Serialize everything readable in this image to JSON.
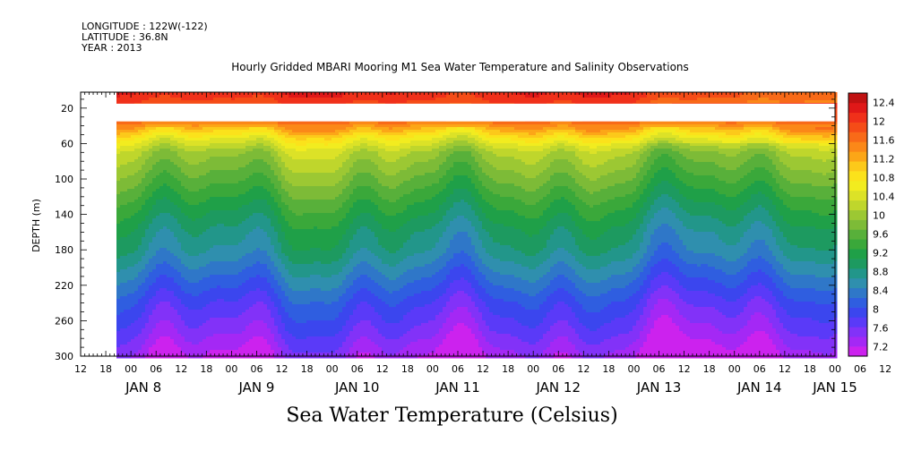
{
  "header": {
    "longitude": "LONGITUDE : 122W(-122)",
    "latitude": "LATITUDE : 36.8N",
    "year": "YEAR : 2013"
  },
  "chart_data": {
    "type": "heatmap",
    "title": "Hourly Gridded MBARI Mooring M1 Sea Water Temperature and Salinity Observations",
    "xlabel": "Sea Water Temperature (Celsius)",
    "ylabel": "DEPTH (m)",
    "x_range_hours": [
      0,
      180
    ],
    "x_hour_ticks": [
      "12",
      "18",
      "00",
      "06",
      "12",
      "18",
      "00",
      "06",
      "12",
      "18",
      "00",
      "06",
      "12",
      "18",
      "00",
      "06",
      "12",
      "18",
      "00",
      "06",
      "12",
      "18",
      "00",
      "06",
      "12",
      "18",
      "00",
      "06",
      "12",
      "18",
      "00",
      "06",
      "12"
    ],
    "x_date_labels": [
      {
        "label": "JAN  8",
        "hour": 15
      },
      {
        "label": "JAN  9",
        "hour": 42
      },
      {
        "label": "JAN 10",
        "hour": 66
      },
      {
        "label": "JAN 11",
        "hour": 90
      },
      {
        "label": "JAN 12",
        "hour": 114
      },
      {
        "label": "JAN 13",
        "hour": 138
      },
      {
        "label": "JAN 14",
        "hour": 162
      },
      {
        "label": "JAN 15",
        "hour": 180
      }
    ],
    "yticks": [
      20,
      60,
      100,
      140,
      180,
      220,
      260,
      300
    ],
    "ylim": [
      300,
      2
    ],
    "colorbar": {
      "labels": [
        "7.2",
        "7.6",
        "8",
        "8.4",
        "8.8",
        "9.2",
        "9.6",
        "10",
        "10.4",
        "10.8",
        "11.2",
        "11.6",
        "12",
        "12.4"
      ],
      "levels_min": 7.2,
      "levels_max": 12.4,
      "level_step": 0.2,
      "colors": [
        "#cc22ee",
        "#a428f5",
        "#8232f8",
        "#5a3af8",
        "#3b46ee",
        "#2f5ee0",
        "#2f77c8",
        "#2f8fae",
        "#22968a",
        "#1d9a60",
        "#1fa048",
        "#3aa83a",
        "#58b03a",
        "#7dbb37",
        "#9cc833",
        "#bfd62c",
        "#dce227",
        "#f2ec1f",
        "#fbe21b",
        "#fcc91a",
        "#fca617",
        "#fb8818",
        "#f86a18",
        "#f54c17",
        "#f0301a",
        "#e01818",
        "#c01212"
      ]
    },
    "data_description": "Temperature decreases with depth: ~12.0 C near 10 m, 11-12 C at 40 m, ~10 C at 80 m, ~9 C at 150-180 m, ~8 C at 240 m, 7.2-7.6 C at 300 m; no data between ~15 m and ~35 m and before Jan 7 18:00."
  }
}
